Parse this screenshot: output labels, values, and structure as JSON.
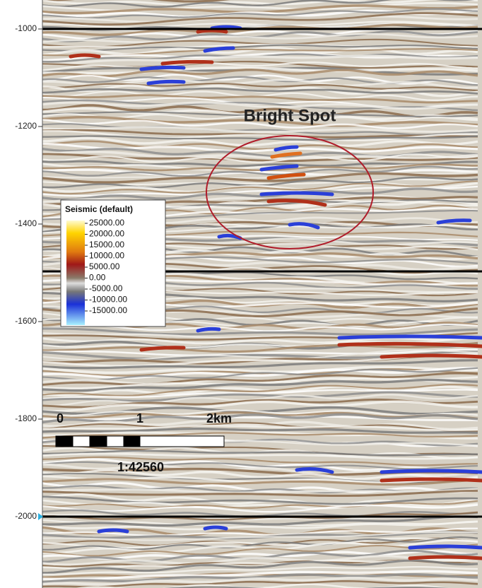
{
  "axis": {
    "ticks": [
      "-1000",
      "-1200",
      "-1400",
      "-1600",
      "-1800",
      "-2000"
    ]
  },
  "annotation": "Bright Spot",
  "legend": {
    "title": "Seismic (default)",
    "labels": [
      "25000.00",
      "20000.00",
      "15000.00",
      "10000.00",
      "5000.00",
      "0.00",
      "-5000.00",
      "-10000.00",
      "-15000.00"
    ]
  },
  "scale_bar": {
    "labels": [
      "0",
      "1",
      "2km"
    ],
    "ratio": "1:42560"
  }
}
